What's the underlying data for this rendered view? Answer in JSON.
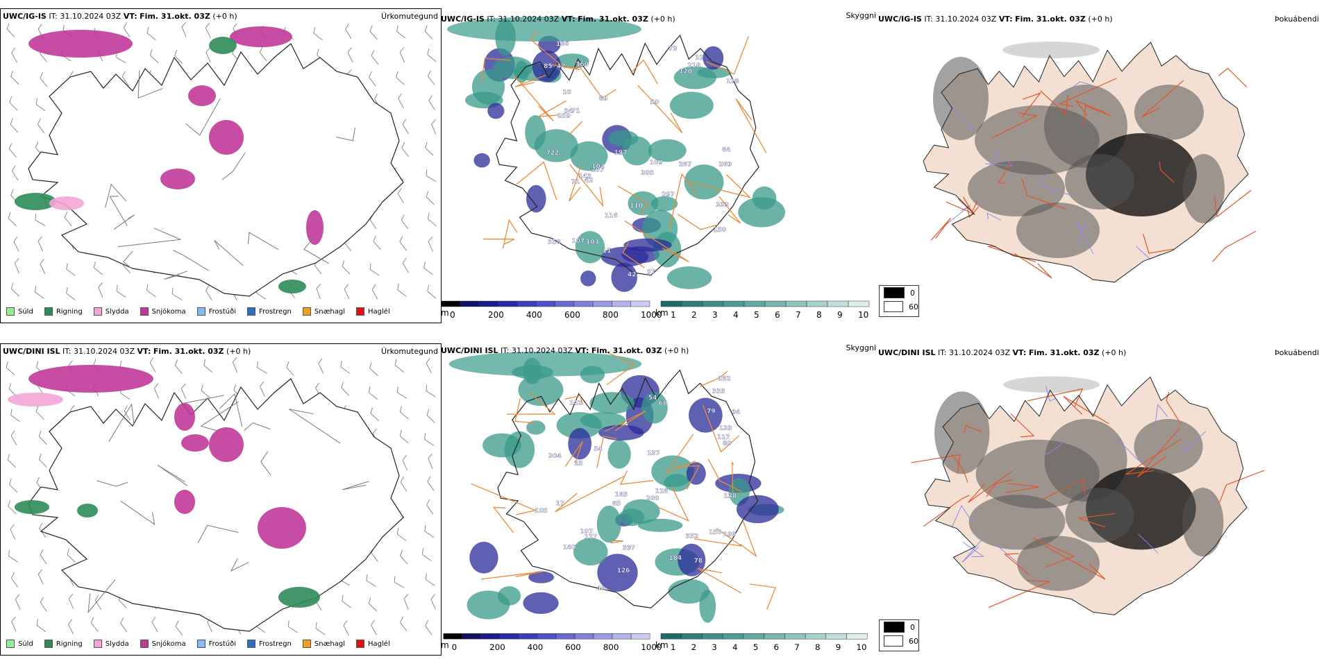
{
  "rows": [
    {
      "model": "UWC/IG-IS",
      "it_label": "IT:",
      "it_value": "31.10.2024 03Z",
      "vt_label": "VT:",
      "vt_value": "Fim. 31.okt. 03Z",
      "offset": "(+0 h)",
      "panels": {
        "precip_type": "Úrkomutegund",
        "cloud": "Skyggni",
        "fog": "Þokuábendi"
      },
      "cloud_labels": [
        "360",
        "128",
        "333",
        "42",
        "109",
        "12",
        "10",
        "73",
        "116",
        "186",
        "120",
        "287",
        "305",
        "218",
        "197",
        "42",
        "64",
        "722",
        "207",
        "104",
        "358",
        "42",
        "69",
        "110",
        "269",
        "143",
        "71",
        "150",
        "103",
        "297",
        "259",
        "71",
        "85",
        "97",
        "50",
        "94",
        "11",
        "107"
      ]
    },
    {
      "model": "UWC/DINI ISL",
      "it_label": "IT:",
      "it_value": "31.10.2024 03Z",
      "vt_label": "VT:",
      "vt_value": "Fim. 31.okt. 03Z",
      "offset": "(+0 h)",
      "panels": {
        "precip_type": "Úrkomutegund",
        "cloud": "Skyggni",
        "fog": "Þokuábendi"
      },
      "cloud_labels": [
        "133",
        "117",
        "184",
        "182",
        "333",
        "137",
        "142",
        "183",
        "118",
        "199",
        "200",
        "54",
        "46",
        "68",
        "80",
        "126",
        "138",
        "105",
        "332",
        "397",
        "304",
        "25",
        "79",
        "17",
        "78",
        "140",
        "85",
        "54",
        "94",
        "150",
        "107",
        "127"
      ]
    }
  ],
  "precip_legend": [
    {
      "label": "Súld",
      "color": "#98ee98"
    },
    {
      "label": "Rigning",
      "color": "#2e8b57"
    },
    {
      "label": "Slydda",
      "color": "#f2a6d6"
    },
    {
      "label": "Snjókoma",
      "color": "#c0399a"
    },
    {
      "label": "Frostúði",
      "color": "#87b8f0"
    },
    {
      "label": "Frostregn",
      "color": "#2f6fbf"
    },
    {
      "label": "Snæhagl",
      "color": "#f0a020"
    },
    {
      "label": "Haglél",
      "color": "#e01010"
    }
  ],
  "cloud_base_scale": {
    "unit": "m",
    "ticks": [
      "0",
      "200",
      "400",
      "600",
      "800",
      "1000"
    ],
    "colors": [
      "#000000",
      "#111166",
      "#1a1a8c",
      "#2a2aa8",
      "#3c3cbc",
      "#5050c8",
      "#6868d2",
      "#8080dc",
      "#9a9ae4",
      "#b4b4ec",
      "#ccccf2"
    ]
  },
  "visibility_scale": {
    "unit": "km",
    "ticks": [
      "1",
      "2",
      "3",
      "4",
      "5",
      "6",
      "7",
      "8",
      "9",
      "10"
    ],
    "colors": [
      "#1e6b6b",
      "#2d7f7b",
      "#3c8f8a",
      "#4e9c96",
      "#63a9a3",
      "#79b6b0",
      "#90c4be",
      "#a8d1cc",
      "#c2dfdb",
      "#ddeeec"
    ]
  },
  "fog_legend": [
    {
      "value": "0",
      "color": "#000000"
    },
    {
      "value": "60",
      "color": "#ffffff"
    }
  ],
  "colors": {
    "land_fog": "#f3e0d2",
    "roads": "#e0562a",
    "roads_cloud": "#e98a3a",
    "coast": "#222222",
    "wind_barb": "#8a8a8a",
    "cloud_teal": "#3a9a8a",
    "cloud_blue": "#2b2b9a",
    "rivers": "#8a8ae8"
  }
}
